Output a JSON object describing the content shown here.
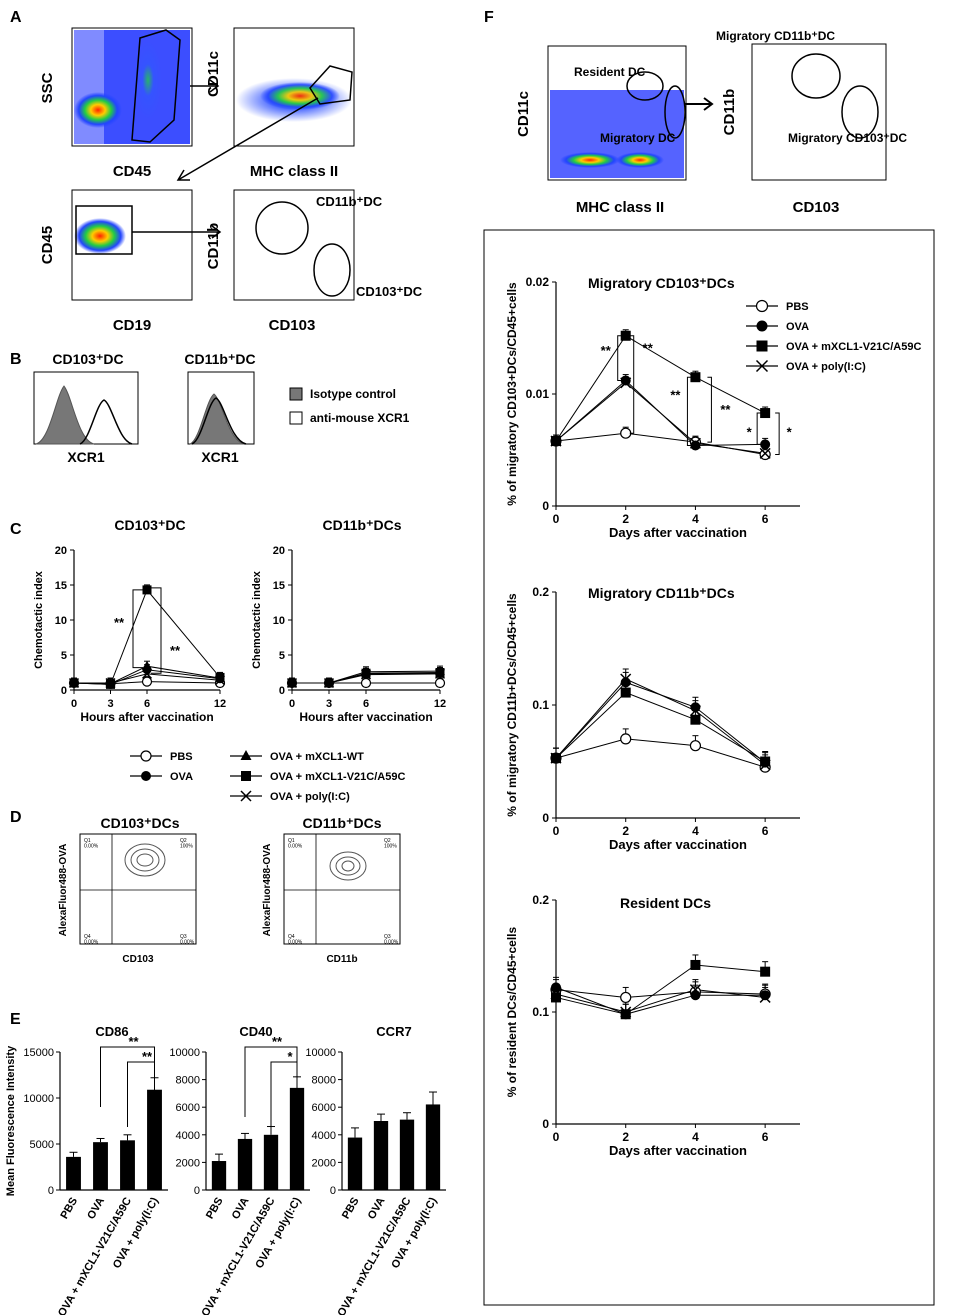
{
  "panel_labels": {
    "A": "A",
    "B": "B",
    "C": "C",
    "D": "D",
    "E": "E",
    "F": "F"
  },
  "panel_a": {
    "plot1": {
      "xlabel": "CD45",
      "ylabel": "SSC"
    },
    "plot2": {
      "xlabel": "MHC class II",
      "ylabel": "CD11c"
    },
    "plot3": {
      "xlabel": "CD19",
      "ylabel": "CD45"
    },
    "plot4": {
      "xlabel": "CD103",
      "ylabel": "CD11b",
      "gate1": "CD11b⁺DC",
      "gate2": "CD103⁺DC"
    }
  },
  "panel_b": {
    "hist1": {
      "title": "CD103⁺DC",
      "xlabel": "XCR1"
    },
    "hist2": {
      "title": "CD11b⁺DC",
      "xlabel": "XCR1"
    },
    "legend": [
      "Isotype control",
      "anti-mouse XCR1"
    ]
  },
  "panel_d": {
    "plot1": {
      "title": "CD103⁺DCs",
      "xlabel": "CD103",
      "ylabel": "AlexaFluor488-OVA",
      "q1": "Q1\n0.00%",
      "q2": "Q2\n100%",
      "q3": "Q3\n0.00%",
      "q4": "Q4\n0.00%"
    },
    "plot2": {
      "title": "CD11b⁺DCs",
      "xlabel": "CD11b",
      "ylabel": "AlexaFluor488-OVA",
      "q1": "Q1\n0.00%",
      "q2": "Q2\n100%",
      "q3": "Q3\n0.00%",
      "q4": "Q4\n0.00%"
    }
  },
  "panel_f_flow": {
    "plot1": {
      "xlabel": "MHC class II",
      "ylabel": "CD11c",
      "gate1": "Resident DC",
      "gate2": "Migratory DC"
    },
    "plot2": {
      "xlabel": "CD103",
      "ylabel": "CD11b",
      "gate1": "Migratory CD11b⁺DC",
      "gate2": "Migratory CD103⁺DC"
    }
  },
  "legend_c": [
    "PBS",
    "OVA",
    "OVA + mXCL1-WT",
    "OVA + mXCL1-V21C/A59C",
    "OVA + poly(I:C)"
  ],
  "legend_f": [
    "PBS",
    "OVA",
    "OVA + mXCL1-V21C/A59C",
    "OVA + poly(I:C)"
  ],
  "chart_data": [
    {
      "id": "C1",
      "type": "line",
      "title": "CD103⁺DC",
      "xlabel": "Hours after vaccination",
      "ylabel": "Chemotactic index",
      "x": [
        0,
        3,
        6,
        12
      ],
      "xlim": [
        0,
        12
      ],
      "ylim": [
        0,
        20
      ],
      "yticks": [
        0,
        5,
        10,
        15,
        20
      ],
      "series": [
        {
          "name": "PBS",
          "values": [
            1.0,
            0.9,
            1.2,
            1.0
          ]
        },
        {
          "name": "OVA",
          "values": [
            1.0,
            0.8,
            2.9,
            1.6
          ]
        },
        {
          "name": "OVA + mXCL1-WT",
          "values": [
            1.0,
            0.9,
            3.4,
            1.7
          ]
        },
        {
          "name": "OVA + mXCL1-V21C/A59C",
          "values": [
            1.0,
            0.8,
            14.3,
            1.8
          ]
        },
        {
          "name": "OVA + poly(I:C)",
          "values": [
            1.0,
            1.0,
            2.3,
            1.4
          ]
        }
      ],
      "annotations": [
        "**",
        "**"
      ]
    },
    {
      "id": "C2",
      "type": "line",
      "title": "CD11b⁺DCs",
      "xlabel": "Hours after vaccination",
      "ylabel": "Chemotactic index",
      "x": [
        0,
        3,
        6,
        12
      ],
      "xlim": [
        0,
        12
      ],
      "ylim": [
        0,
        20
      ],
      "yticks": [
        0,
        5,
        10,
        15,
        20
      ],
      "series": [
        {
          "name": "PBS",
          "values": [
            1.0,
            1.0,
            1.0,
            1.0
          ]
        },
        {
          "name": "OVA",
          "values": [
            1.0,
            1.0,
            2.3,
            2.4
          ]
        },
        {
          "name": "OVA + mXCL1-WT",
          "values": [
            1.0,
            1.0,
            2.6,
            2.7
          ]
        },
        {
          "name": "OVA + mXCL1-V21C/A59C",
          "values": [
            1.0,
            1.0,
            2.4,
            2.5
          ]
        },
        {
          "name": "OVA + poly(I:C)",
          "values": [
            1.0,
            1.0,
            2.2,
            2.3
          ]
        }
      ]
    },
    {
      "id": "E1",
      "type": "bar",
      "title": "CD86",
      "ylabel": "Mean Fluorescence Intensity",
      "categories": [
        "PBS",
        "OVA",
        "OVA + mXCL1-V21C/A59C",
        "OVA + poly(I:C)"
      ],
      "values": [
        3600,
        5200,
        5400,
        10900
      ],
      "errors": [
        500,
        400,
        600,
        1300
      ],
      "ylim": [
        0,
        15000
      ],
      "yticks": [
        0,
        5000,
        10000,
        15000
      ],
      "annotations": [
        "**",
        "**"
      ]
    },
    {
      "id": "E2",
      "type": "bar",
      "title": "CD40",
      "categories": [
        "PBS",
        "OVA",
        "OVA + mXCL1-V21C/A59C",
        "OVA + poly(I:C)"
      ],
      "values": [
        2100,
        3700,
        4000,
        7400
      ],
      "errors": [
        500,
        400,
        600,
        800
      ],
      "ylim": [
        0,
        10000
      ],
      "yticks": [
        0,
        2000,
        4000,
        6000,
        8000,
        10000
      ],
      "annotations": [
        "**",
        "*"
      ]
    },
    {
      "id": "E3",
      "type": "bar",
      "title": "CCR7",
      "categories": [
        "PBS",
        "OVA",
        "OVA + mXCL1-V21C/A59C",
        "OVA + poly(I:C)"
      ],
      "values": [
        3800,
        5000,
        5100,
        6200
      ],
      "errors": [
        700,
        500,
        500,
        900
      ],
      "ylim": [
        0,
        10000
      ],
      "yticks": [
        0,
        2000,
        4000,
        6000,
        8000,
        10000
      ]
    },
    {
      "id": "F1",
      "type": "line",
      "title": "Migratory CD103⁺DCs",
      "xlabel": "Days after vaccination",
      "ylabel": "% of migratory CD103+DCs/CD45+cells",
      "x": [
        0,
        2,
        4,
        6
      ],
      "xlim": [
        0,
        7
      ],
      "ylim": [
        0,
        0.02
      ],
      "yticks": [
        0,
        0.01,
        0.02
      ],
      "series": [
        {
          "name": "PBS",
          "values": [
            0.0058,
            0.0065,
            0.0057,
            0.0046
          ]
        },
        {
          "name": "OVA",
          "values": [
            0.0058,
            0.0112,
            0.0054,
            0.0055
          ]
        },
        {
          "name": "OVA + mXCL1-V21C/A59C",
          "values": [
            0.0058,
            0.0152,
            0.0115,
            0.0083
          ]
        },
        {
          "name": "OVA + poly(I:C)",
          "values": [
            0.0058,
            0.011,
            0.0056,
            0.0047
          ]
        }
      ],
      "annotations": [
        "**",
        "**",
        "**",
        "**",
        "*",
        "*"
      ]
    },
    {
      "id": "F2",
      "type": "line",
      "title": "Migratory CD11b⁺DCs",
      "xlabel": "Days after vaccination",
      "ylabel": "% of migratory CD11b+DCs/CD45+cells",
      "x": [
        0,
        2,
        4,
        6
      ],
      "xlim": [
        0,
        7
      ],
      "ylim": [
        0,
        0.2
      ],
      "yticks": [
        0,
        0.1,
        0.2
      ],
      "series": [
        {
          "name": "PBS",
          "values": [
            0.053,
            0.07,
            0.064,
            0.045
          ]
        },
        {
          "name": "OVA",
          "values": [
            0.053,
            0.12,
            0.098,
            0.049
          ]
        },
        {
          "name": "OVA + mXCL1-V21C/A59C",
          "values": [
            0.053,
            0.111,
            0.087,
            0.05
          ]
        },
        {
          "name": "OVA + poly(I:C)",
          "values": [
            0.053,
            0.123,
            0.095,
            0.047
          ]
        }
      ]
    },
    {
      "id": "F3",
      "type": "line",
      "title": "Resident DCs",
      "xlabel": "Days after vaccination",
      "ylabel": "% of resident DCs/CD45+cells",
      "x": [
        0,
        2,
        4,
        6
      ],
      "xlim": [
        0,
        7
      ],
      "ylim": [
        0,
        0.2
      ],
      "yticks": [
        0,
        0.1,
        0.2
      ],
      "series": [
        {
          "name": "PBS",
          "values": [
            0.12,
            0.113,
            0.118,
            0.116
          ]
        },
        {
          "name": "OVA",
          "values": [
            0.122,
            0.098,
            0.115,
            0.115
          ]
        },
        {
          "name": "OVA + mXCL1-V21C/A59C",
          "values": [
            0.113,
            0.098,
            0.142,
            0.136
          ]
        },
        {
          "name": "OVA + poly(I:C)",
          "values": [
            0.116,
            0.1,
            0.12,
            0.113
          ]
        }
      ]
    }
  ]
}
